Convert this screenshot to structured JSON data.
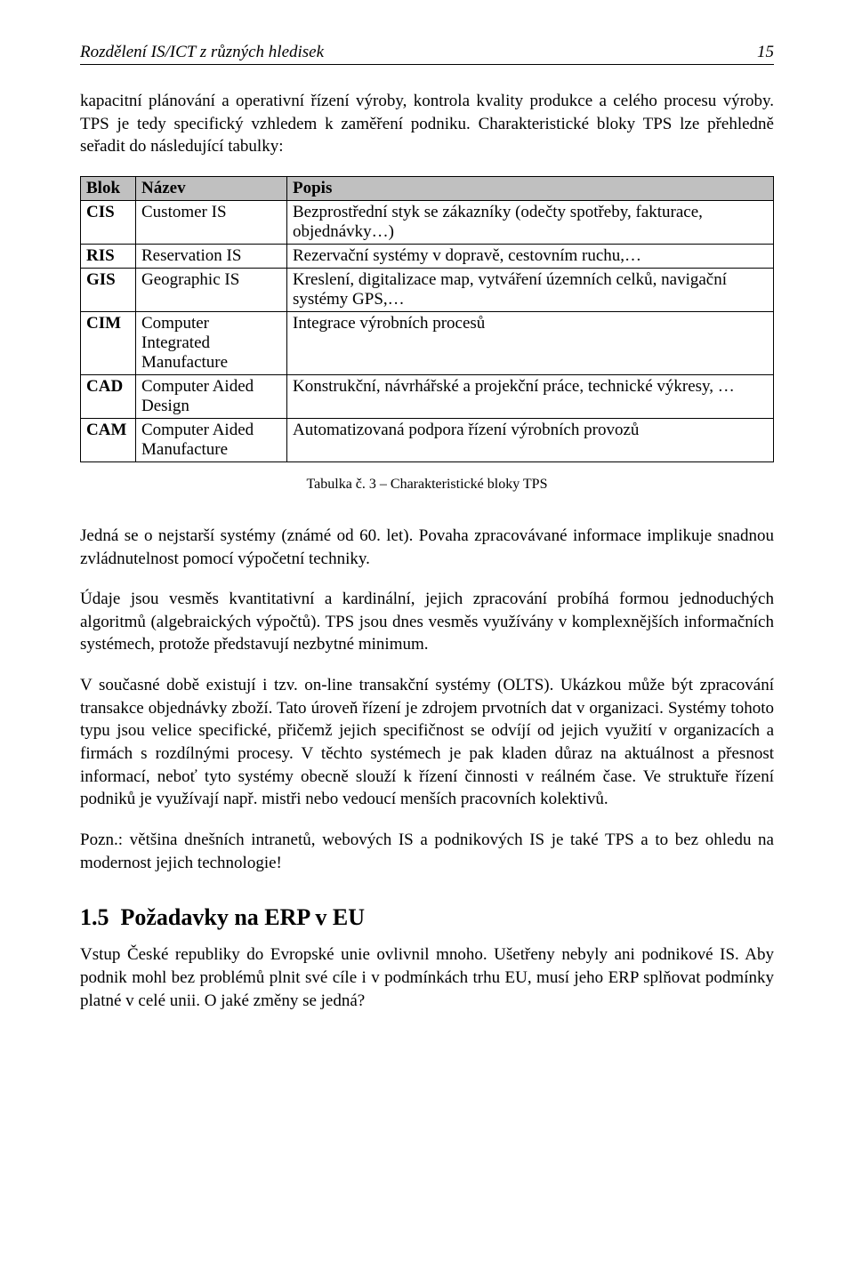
{
  "header": {
    "title": "Rozdělení IS/ICT z různých hledisek",
    "pagenum": "15"
  },
  "intro1": "kapacitní plánování a operativní řízení výroby, kontrola kvality produkce a celého procesu výroby. TPS je tedy specifický vzhledem k zaměření podniku. Charakteristické bloky TPS lze přehledně seřadit do následující tabulky:",
  "table": {
    "columns": [
      "Blok",
      "Název",
      "Popis"
    ],
    "rows": [
      [
        "CIS",
        "Customer IS",
        "Bezprostřední styk se zákazníky (odečty spotřeby, fakturace, objednávky…)"
      ],
      [
        "RIS",
        "Reservation IS",
        "Rezervační systémy v dopravě, cestovním ruchu,…"
      ],
      [
        "GIS",
        "Geographic IS",
        "Kreslení, digitalizace map, vytváření územních celků, navigační systémy GPS,…"
      ],
      [
        "CIM",
        "Computer Integrated Manufacture",
        "Integrace výrobních procesů"
      ],
      [
        "CAD",
        "Computer Aided Design",
        "Konstrukční, návrhářské a projekční práce, technické výkresy, …"
      ],
      [
        "CAM",
        "Computer Aided Manufacture",
        "Automatizovaná podpora řízení výrobních provozů"
      ]
    ],
    "header_bg": "#c0c0c0",
    "border_color": "#000000"
  },
  "caption": "Tabulka č. 3 – Charakteristické bloky TPS",
  "para2": "Jedná se o nejstarší systémy (známé od 60. let). Povaha zpracovávané informace implikuje snadnou zvládnutelnost pomocí výpočetní techniky.",
  "para3": "Údaje jsou vesměs kvantitativní a kardinální, jejich zpracování probíhá formou jednoduchých algoritmů (algebraických výpočtů). TPS jsou dnes vesměs využívány v komplexnějších informačních systémech, protože představují nezbytné minimum.",
  "para4": "V současné době existují i tzv. on-line transakční systémy (OLTS). Ukázkou může být zpracování transakce objednávky zboží. Tato úroveň řízení je zdrojem prvotních dat v organizaci. Systémy tohoto typu jsou velice specifické, přičemž jejich specifičnost se odvíjí od jejich využití v organizacích a firmách s rozdílnými procesy. V těchto systémech je pak kladen důraz na aktuálnost a přesnost informací, neboť tyto systémy obecně slouží k řízení činnosti v reálném čase. Ve struktuře řízení podniků je využívají např. mistři nebo vedoucí menších pracovních kolektivů.",
  "para5": "Pozn.: většina dnešních intranetů, webových IS a podnikových IS je také TPS a to bez ohledu na modernost jejich technologie!",
  "section": {
    "num": "1.5",
    "title": "Požadavky na ERP v EU"
  },
  "para6": "Vstup České republiky do Evropské unie ovlivnil mnoho. Ušetřeny nebyly ani podnikové IS. Aby podnik mohl bez problémů plnit své cíle i v podmínkách trhu EU, musí jeho ERP splňovat podmínky platné v celé unii. O jaké změny se jedná?"
}
